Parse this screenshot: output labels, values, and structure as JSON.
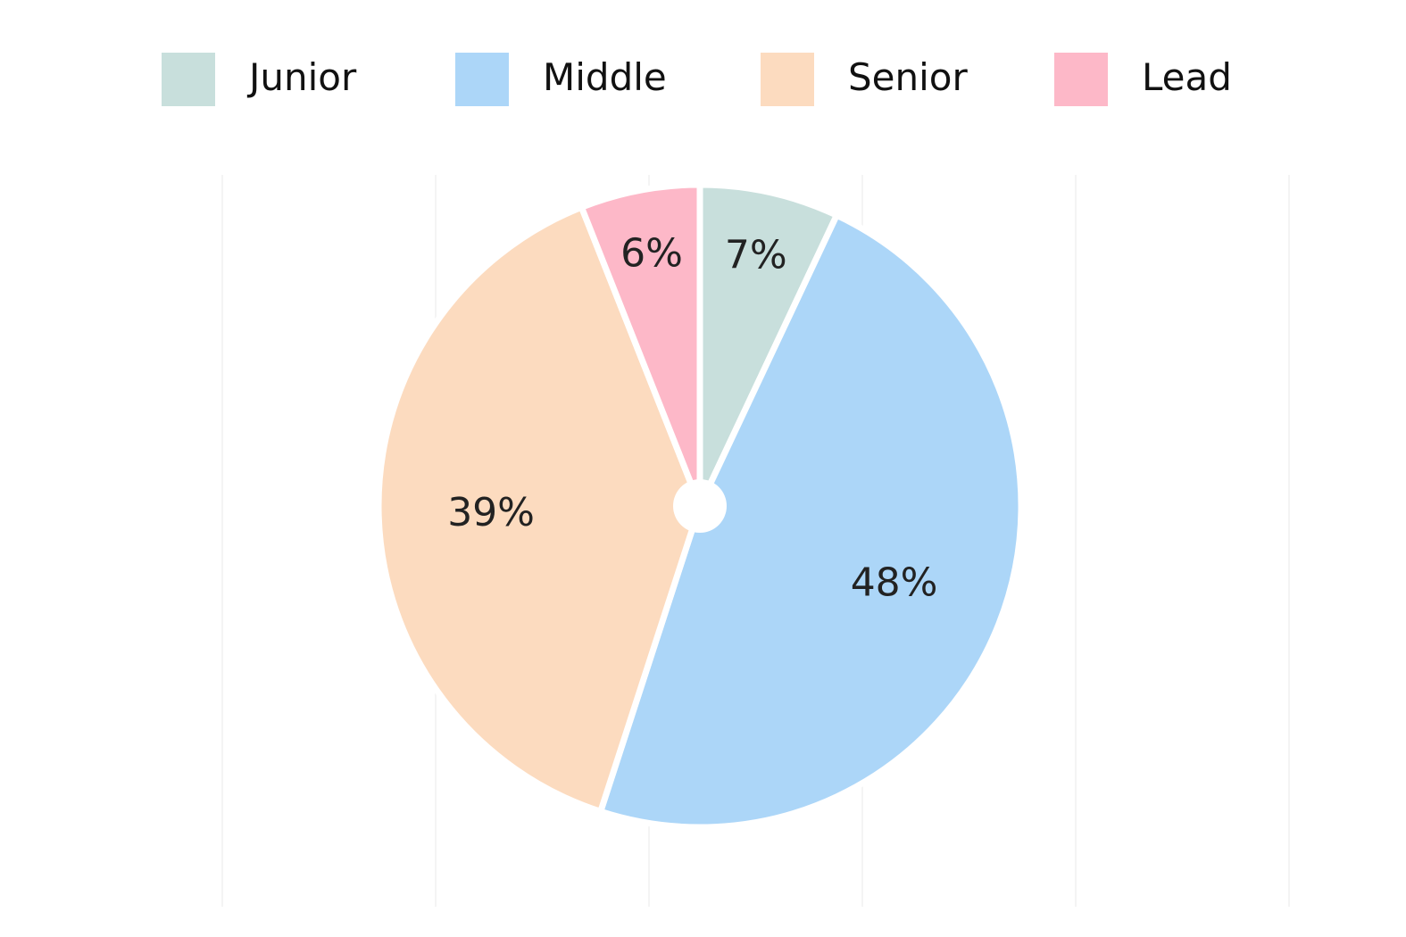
{
  "chart_data": {
    "type": "pie",
    "categories": [
      "Junior",
      "Middle",
      "Senior",
      "Lead"
    ],
    "values": [
      7,
      48,
      39,
      6
    ],
    "value_labels": [
      "7%",
      "48%",
      "39%",
      "6%"
    ],
    "colors": [
      "#c8dfdc",
      "#acd6f8",
      "#fcdbbf",
      "#fdb8c8"
    ],
    "legend_position": "top",
    "start_angle": "12 o'clock, clockwise",
    "grid": true
  }
}
